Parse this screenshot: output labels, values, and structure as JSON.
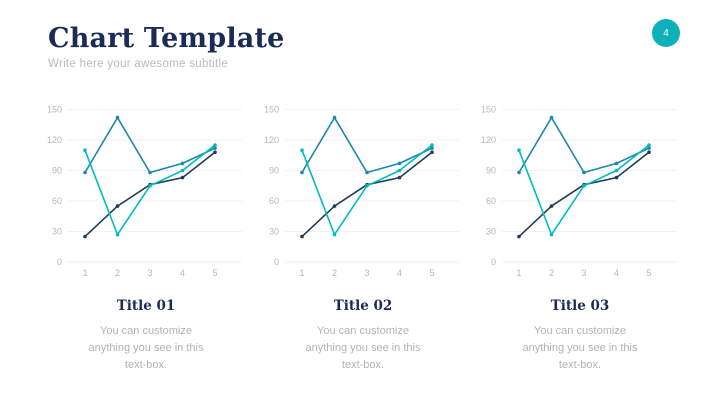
{
  "slide": {
    "title": "Chart Template",
    "subtitle": "Write here your awesome subtitle",
    "page_number": "4",
    "colors": {
      "heading_navy": "#1a2b55",
      "badge_teal": "#0fb0ba",
      "muted_gray": "#b3b3b3",
      "gridline": "#f2f2f2"
    }
  },
  "cards": [
    {
      "title": "Title 01",
      "body": "You can customize\nanything you see in this\ntext-box."
    },
    {
      "title": "Title 02",
      "body": "You can customize\nanything you see in this\ntext-box."
    },
    {
      "title": "Title 03",
      "body": "You can customize\nanything you see in this\ntext-box."
    }
  ],
  "chart_data": [
    {
      "type": "line",
      "title": "Title 01",
      "x": [
        1,
        2,
        3,
        4,
        5
      ],
      "series": [
        {
          "name": "navy-series",
          "color": "#203c58",
          "values": [
            25,
            55,
            76,
            83,
            108
          ]
        },
        {
          "name": "blue-series",
          "color": "#1b87ab",
          "values": [
            88,
            142,
            88,
            97,
            112
          ]
        },
        {
          "name": "teal-series",
          "color": "#00bcc2",
          "values": [
            110,
            27,
            75,
            90,
            115
          ]
        }
      ],
      "ylim": [
        0,
        150
      ],
      "yticks": [
        0,
        30,
        60,
        90,
        120,
        150
      ],
      "grid": true,
      "legend": false
    },
    {
      "type": "line",
      "title": "Title 02",
      "x": [
        1,
        2,
        3,
        4,
        5
      ],
      "series": [
        {
          "name": "navy-series",
          "color": "#203c58",
          "values": [
            25,
            55,
            76,
            83,
            108
          ]
        },
        {
          "name": "blue-series",
          "color": "#1b87ab",
          "values": [
            88,
            142,
            88,
            97,
            112
          ]
        },
        {
          "name": "teal-series",
          "color": "#00bcc2",
          "values": [
            110,
            27,
            75,
            90,
            115
          ]
        }
      ],
      "ylim": [
        0,
        150
      ],
      "yticks": [
        0,
        30,
        60,
        90,
        120,
        150
      ],
      "grid": true,
      "legend": false
    },
    {
      "type": "line",
      "title": "Title 03",
      "x": [
        1,
        2,
        3,
        4,
        5
      ],
      "series": [
        {
          "name": "navy-series",
          "color": "#203c58",
          "values": [
            25,
            55,
            76,
            83,
            108
          ]
        },
        {
          "name": "blue-series",
          "color": "#1b87ab",
          "values": [
            88,
            142,
            88,
            97,
            112
          ]
        },
        {
          "name": "teal-series",
          "color": "#00bcc2",
          "values": [
            110,
            27,
            75,
            90,
            115
          ]
        }
      ],
      "ylim": [
        0,
        150
      ],
      "yticks": [
        0,
        30,
        60,
        90,
        120,
        150
      ],
      "grid": true,
      "legend": false
    }
  ]
}
